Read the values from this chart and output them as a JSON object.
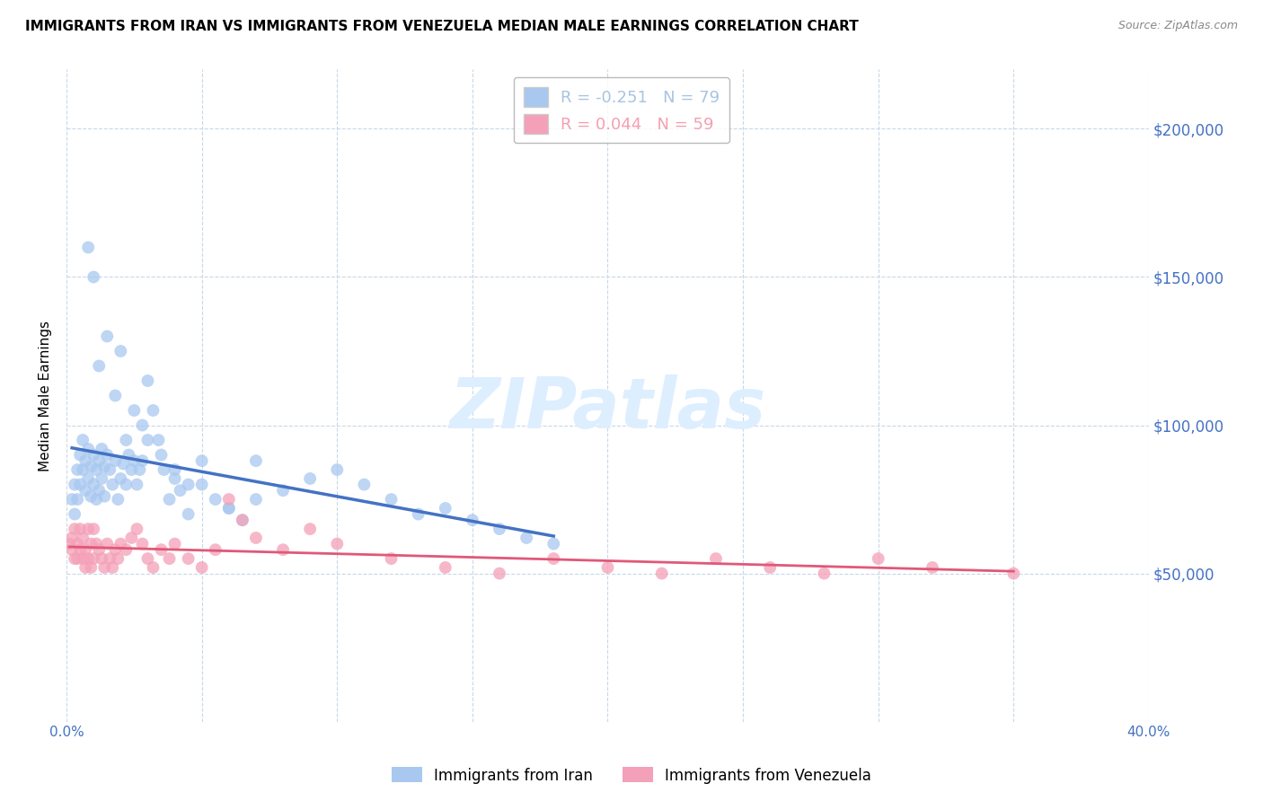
{
  "title": "IMMIGRANTS FROM IRAN VS IMMIGRANTS FROM VENEZUELA MEDIAN MALE EARNINGS CORRELATION CHART",
  "source": "Source: ZipAtlas.com",
  "ylabel": "Median Male Earnings",
  "right_ytick_labels": [
    "$50,000",
    "$100,000",
    "$150,000",
    "$200,000"
  ],
  "right_ytick_values": [
    50000,
    100000,
    150000,
    200000
  ],
  "legend_entries": [
    {
      "label": "R = -0.251   N = 79",
      "color": "#a8c4e0"
    },
    {
      "label": "R = 0.044   N = 59",
      "color": "#f4a0b0"
    }
  ],
  "iran_color": "#a8c8f0",
  "venezuela_color": "#f4a0b8",
  "trend_iran_solid_color": "#4472c4",
  "trend_iran_dash_color": "#a8c8f0",
  "trend_venezuela_color": "#e05878",
  "watermark_text": "ZIPatlas",
  "watermark_color": "#ddeeff",
  "iran_x": [
    0.002,
    0.003,
    0.003,
    0.004,
    0.004,
    0.005,
    0.005,
    0.006,
    0.006,
    0.007,
    0.007,
    0.008,
    0.008,
    0.009,
    0.009,
    0.01,
    0.01,
    0.011,
    0.011,
    0.012,
    0.012,
    0.013,
    0.013,
    0.014,
    0.014,
    0.015,
    0.016,
    0.017,
    0.018,
    0.019,
    0.02,
    0.021,
    0.022,
    0.023,
    0.024,
    0.025,
    0.026,
    0.027,
    0.028,
    0.03,
    0.032,
    0.034,
    0.036,
    0.038,
    0.04,
    0.042,
    0.045,
    0.05,
    0.055,
    0.06,
    0.065,
    0.07,
    0.08,
    0.09,
    0.1,
    0.11,
    0.12,
    0.13,
    0.14,
    0.15,
    0.16,
    0.17,
    0.18,
    0.008,
    0.01,
    0.012,
    0.015,
    0.018,
    0.02,
    0.022,
    0.025,
    0.028,
    0.03,
    0.035,
    0.04,
    0.045,
    0.05,
    0.06,
    0.07
  ],
  "iran_y": [
    75000,
    70000,
    80000,
    85000,
    75000,
    90000,
    80000,
    95000,
    85000,
    88000,
    78000,
    82000,
    92000,
    86000,
    76000,
    90000,
    80000,
    85000,
    75000,
    88000,
    78000,
    82000,
    92000,
    86000,
    76000,
    90000,
    85000,
    80000,
    88000,
    75000,
    82000,
    87000,
    80000,
    90000,
    85000,
    88000,
    80000,
    85000,
    88000,
    115000,
    105000,
    95000,
    85000,
    75000,
    82000,
    78000,
    70000,
    80000,
    75000,
    72000,
    68000,
    75000,
    78000,
    82000,
    85000,
    80000,
    75000,
    70000,
    72000,
    68000,
    65000,
    62000,
    60000,
    160000,
    150000,
    120000,
    130000,
    110000,
    125000,
    95000,
    105000,
    100000,
    95000,
    90000,
    85000,
    80000,
    88000,
    72000,
    88000
  ],
  "venezuela_x": [
    0.001,
    0.002,
    0.002,
    0.003,
    0.003,
    0.004,
    0.004,
    0.005,
    0.005,
    0.006,
    0.006,
    0.007,
    0.007,
    0.008,
    0.008,
    0.009,
    0.009,
    0.01,
    0.01,
    0.011,
    0.012,
    0.013,
    0.014,
    0.015,
    0.016,
    0.017,
    0.018,
    0.019,
    0.02,
    0.022,
    0.024,
    0.026,
    0.028,
    0.03,
    0.032,
    0.035,
    0.038,
    0.04,
    0.045,
    0.05,
    0.055,
    0.06,
    0.065,
    0.07,
    0.08,
    0.09,
    0.1,
    0.12,
    0.14,
    0.16,
    0.18,
    0.2,
    0.22,
    0.24,
    0.26,
    0.28,
    0.3,
    0.32,
    0.35
  ],
  "venezuela_y": [
    60000,
    62000,
    58000,
    65000,
    55000,
    60000,
    55000,
    65000,
    58000,
    62000,
    55000,
    58000,
    52000,
    65000,
    55000,
    60000,
    52000,
    65000,
    55000,
    60000,
    58000,
    55000,
    52000,
    60000,
    55000,
    52000,
    58000,
    55000,
    60000,
    58000,
    62000,
    65000,
    60000,
    55000,
    52000,
    58000,
    55000,
    60000,
    55000,
    52000,
    58000,
    75000,
    68000,
    62000,
    58000,
    65000,
    60000,
    55000,
    52000,
    50000,
    55000,
    52000,
    50000,
    55000,
    52000,
    50000,
    55000,
    52000,
    50000
  ],
  "xlim": [
    0.0,
    0.4
  ],
  "ylim": [
    0,
    220000
  ],
  "iran_trend_solid_xmax": 0.2,
  "iran_trend_xmax": 0.22,
  "background_color": "#ffffff",
  "grid_color": "#c8d8e8",
  "title_fontsize": 11,
  "axis_label_color": "#4472c4",
  "bottom_legend_labels": [
    "Immigrants from Iran",
    "Immigrants from Venezuela"
  ]
}
